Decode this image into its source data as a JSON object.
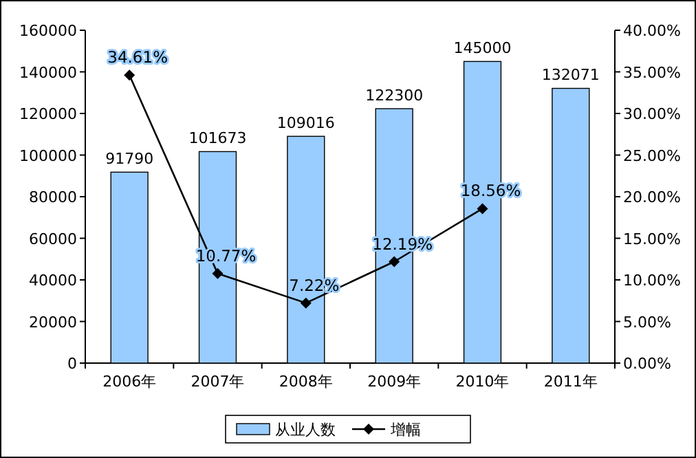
{
  "chart_data": {
    "type": "bar",
    "categories": [
      "2006年",
      "2007年",
      "2008年",
      "2009年",
      "2010年",
      "2011年"
    ],
    "series": [
      {
        "name": "从业人数",
        "color": "#99ccff",
        "values": [
          91790,
          101673,
          109016,
          122300,
          145000,
          132071
        ],
        "value_labels": [
          "91790",
          "101673",
          "109016",
          "122300",
          "145000",
          "132071"
        ]
      },
      {
        "name": "增幅",
        "type": "line",
        "axis": "y2",
        "color": "#000000",
        "marker": "diamond",
        "values": [
          34.61,
          10.77,
          7.22,
          12.19,
          18.56,
          null
        ],
        "value_labels": [
          "34.61%",
          "10.77%",
          "7.22%",
          "12.19%",
          "18.56%",
          null
        ]
      }
    ],
    "ylim": [
      0,
      160000
    ],
    "yticks": [
      0,
      20000,
      40000,
      60000,
      80000,
      100000,
      120000,
      140000,
      160000
    ],
    "y2lim": [
      0,
      40
    ],
    "y2ticks": [
      {
        "value": 0,
        "label": "0.00%"
      },
      {
        "value": 5,
        "label": "5.00%"
      },
      {
        "value": 10,
        "label": "10.00%"
      },
      {
        "value": 15,
        "label": "15.00%"
      },
      {
        "value": 20,
        "label": "20.00%"
      },
      {
        "value": 25,
        "label": "25.00%"
      },
      {
        "value": 30,
        "label": "30.00%"
      },
      {
        "value": 35,
        "label": "35.00%"
      },
      {
        "value": 40,
        "label": "40.00%"
      }
    ],
    "legend": "bottom",
    "grid": false
  }
}
